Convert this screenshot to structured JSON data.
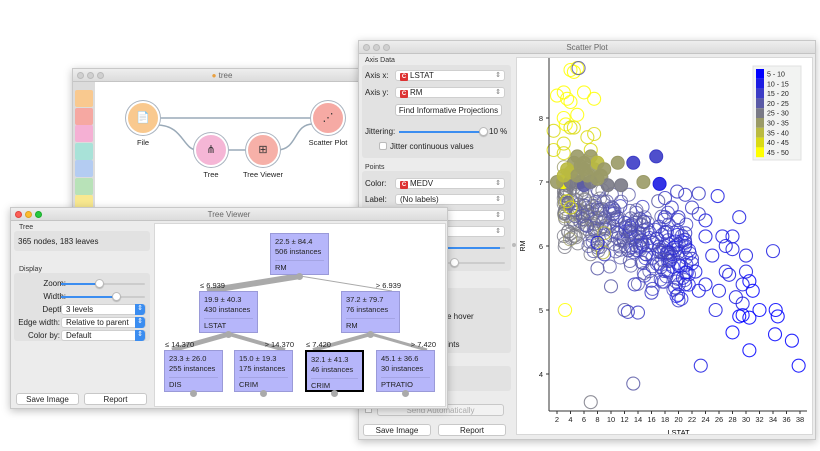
{
  "workflow": {
    "title": "tree",
    "nodes": [
      {
        "label": "File",
        "color": "#f9c98f"
      },
      {
        "label": "Tree",
        "color": "#f5b6d6"
      },
      {
        "label": "Tree Viewer",
        "color": "#f6b0a8"
      },
      {
        "label": "Scatter Plot",
        "color": "#f6aaa4"
      }
    ],
    "toolbar_colors": [
      "#f9c98f",
      "#f6a8a2",
      "#f5b0d4",
      "#a8e2d8",
      "#b4ccf2",
      "#b8e2b8",
      "#f8e890"
    ]
  },
  "scatter": {
    "title": "Scatter Plot",
    "axis_data_label": "Axis Data",
    "axis_x_label": "Axis x:",
    "axis_x_value": "LSTAT",
    "axis_y_label": "Axis y:",
    "axis_y_value": "RM",
    "find_projections": "Find Informative Projections",
    "jittering_label": "Jittering:",
    "jittering_value": "10 %",
    "jittering_fraction": 1.0,
    "jitter_continuous": "Jitter continuous values",
    "points_label": "Points",
    "color_label": "Color:",
    "color_value": "MEDV",
    "label_label": "Label:",
    "label_value": "(No labels)",
    "hover_text": "e hover",
    "ints_text": "ints",
    "send_automatically": "Send Automatically",
    "save_image": "Save Image",
    "report": "Report"
  },
  "tree_viewer": {
    "title": "Tree Viewer",
    "tree_label": "Tree",
    "tree_info": "365 nodes, 183 leaves",
    "display_label": "Display",
    "zoom_label": "Zoom:",
    "zoom_fraction": 0.45,
    "width_label": "Width:",
    "width_fraction": 0.65,
    "depth_label": "Depth:",
    "depth_value": "3 levels",
    "edge_width_label": "Edge width:",
    "edge_width_value": "Relative to parent",
    "color_by_label": "Color by:",
    "color_by_value": "Default",
    "save_image": "Save Image",
    "report": "Report",
    "nodes": [
      {
        "stat": "22.5 ± 84.4",
        "instances": "506 instances",
        "split": "RM",
        "edge": ""
      },
      {
        "stat": "19.9 ± 40.3",
        "instances": "430 instances",
        "split": "LSTAT",
        "edge": "≤ 6.939"
      },
      {
        "stat": "37.2 ± 79.7",
        "instances": "76 instances",
        "split": "RM",
        "edge": "> 6.939"
      },
      {
        "stat": "23.3 ± 26.0",
        "instances": "255 instances",
        "split": "DIS",
        "edge": "≤ 14.370"
      },
      {
        "stat": "15.0 ± 19.3",
        "instances": "175 instances",
        "split": "CRIM",
        "edge": "> 14.370"
      },
      {
        "stat": "32.1 ± 41.3",
        "instances": "46 instances",
        "split": "CRIM",
        "edge": "≤ 7.420"
      },
      {
        "stat": "45.1 ± 36.6",
        "instances": "30 instances",
        "split": "PTRATIO",
        "edge": "> 7.420"
      }
    ]
  },
  "chart_data": {
    "type": "scatter",
    "xlabel": "LSTAT",
    "ylabel": "RM",
    "xlim": [
      0.5,
      39
    ],
    "ylim": [
      3.4,
      9.0
    ],
    "xticks": [
      2,
      4,
      6,
      8,
      10,
      12,
      14,
      16,
      18,
      20,
      22,
      24,
      26,
      28,
      30,
      32,
      34,
      36,
      38
    ],
    "yticks": [
      4,
      5,
      6,
      7,
      8
    ],
    "legend": {
      "placement": "top-right",
      "entries": [
        {
          "label": "5 - 10",
          "color": "#0000ff"
        },
        {
          "label": "10 - 15",
          "color": "#1c1ce2"
        },
        {
          "label": "15 - 20",
          "color": "#3c3cc6"
        },
        {
          "label": "20 - 25",
          "color": "#5a5aa6"
        },
        {
          "label": "25 - 30",
          "color": "#7a7a86"
        },
        {
          "label": "30 - 35",
          "color": "#9a9a66"
        },
        {
          "label": "35 - 40",
          "color": "#baba40"
        },
        {
          "label": "40 - 45",
          "color": "#dada14"
        },
        {
          "label": "45 - 50",
          "color": "#ffff00"
        }
      ]
    },
    "points_filled": [
      [
        2.9,
        7.0,
        50
      ],
      [
        4.5,
        7.3,
        33
      ],
      [
        5,
        7.4,
        32
      ],
      [
        6,
        7.2,
        31
      ],
      [
        7,
        7.4,
        30
      ],
      [
        7.5,
        7.2,
        34
      ],
      [
        8,
        7.3,
        36
      ],
      [
        8.5,
        7.1,
        33
      ],
      [
        9,
        7.2,
        31
      ],
      [
        3.5,
        7.2,
        37
      ],
      [
        4,
        7.0,
        28
      ],
      [
        5.5,
        7.0,
        27
      ],
      [
        6,
        6.95,
        22
      ],
      [
        7,
        7.0,
        28
      ],
      [
        9.5,
        6.95,
        27
      ],
      [
        11.5,
        6.95,
        26
      ],
      [
        11,
        7.3,
        32
      ],
      [
        14.8,
        7.0,
        31
      ],
      [
        13.3,
        7.3,
        17
      ],
      [
        16.7,
        7.4,
        16
      ],
      [
        17.2,
        6.97,
        12
      ],
      [
        6,
        7.3,
        30
      ],
      [
        2,
        7.0,
        33
      ],
      [
        4,
        7.15,
        35
      ],
      [
        5,
        7.1,
        33
      ],
      [
        6.5,
        7.1,
        34
      ],
      [
        8,
        7.05,
        30
      ],
      [
        3,
        7.1,
        36
      ],
      [
        5.5,
        7.25,
        31
      ]
    ],
    "points_hollow": [
      [
        5,
        8.78,
        48
      ],
      [
        4,
        8.75,
        50
      ],
      [
        4.5,
        8.72,
        50
      ],
      [
        6,
        8.4,
        50
      ],
      [
        7.5,
        8.3,
        48
      ],
      [
        2,
        8.35,
        48
      ],
      [
        3,
        8.4,
        50
      ],
      [
        3.5,
        8.3,
        46
      ],
      [
        4,
        8.25,
        48
      ],
      [
        3,
        8.0,
        50
      ],
      [
        3.3,
        7.9,
        45
      ],
      [
        4,
        7.85,
        44
      ],
      [
        4.5,
        7.85,
        42
      ],
      [
        1.5,
        7.8,
        44
      ],
      [
        5,
        8.05,
        46
      ],
      [
        6.5,
        7.7,
        44
      ],
      [
        7.5,
        7.75,
        44
      ],
      [
        3,
        7.6,
        43
      ],
      [
        7,
        7.5,
        42
      ],
      [
        1.5,
        7.5,
        42
      ],
      [
        3,
        7.45,
        44
      ],
      [
        3.2,
        5.0,
        50
      ],
      [
        3.5,
        6.7,
        42
      ],
      [
        4,
        6.6,
        40
      ],
      [
        9,
        6.2,
        37
      ],
      [
        8.8,
        5.9,
        36
      ],
      [
        5.2,
        8.78,
        22
      ],
      [
        29,
        6.45,
        12
      ],
      [
        25.8,
        6.78,
        14
      ],
      [
        23,
        6.82,
        16
      ],
      [
        19.8,
        6.85,
        18
      ],
      [
        21,
        6.8,
        17
      ],
      [
        26.5,
        6.15,
        12
      ],
      [
        28,
        6.15,
        13
      ],
      [
        24,
        6.4,
        14
      ],
      [
        24,
        6.15,
        14
      ],
      [
        30,
        5.85,
        11
      ],
      [
        34,
        5.92,
        10
      ],
      [
        27,
        6.0,
        13
      ],
      [
        28,
        5.95,
        12
      ],
      [
        22,
        5.8,
        15
      ],
      [
        25,
        5.85,
        13
      ],
      [
        27,
        5.6,
        12
      ],
      [
        27.5,
        5.55,
        11
      ],
      [
        30,
        5.6,
        10
      ],
      [
        30.5,
        5.45,
        9
      ],
      [
        31,
        5.3,
        9
      ],
      [
        29.5,
        5.4,
        10
      ],
      [
        28.5,
        5.2,
        11
      ],
      [
        25.5,
        5.0,
        12
      ],
      [
        29.5,
        5.1,
        10
      ],
      [
        29,
        4.9,
        9
      ],
      [
        29.5,
        4.92,
        9
      ],
      [
        30.5,
        4.88,
        8
      ],
      [
        32,
        5.0,
        8
      ],
      [
        34.4,
        5.0,
        7
      ],
      [
        34.7,
        4.9,
        7
      ],
      [
        28,
        4.65,
        9
      ],
      [
        34.3,
        4.62,
        7
      ],
      [
        36.8,
        4.52,
        6
      ],
      [
        30.5,
        4.37,
        8
      ],
      [
        37.8,
        4.13,
        6
      ],
      [
        23.3,
        4.13,
        12
      ],
      [
        13.3,
        3.85,
        22
      ],
      [
        7,
        3.56,
        27
      ],
      [
        12,
        5.0,
        20
      ],
      [
        12.5,
        4.97,
        19
      ],
      [
        14,
        4.96,
        18
      ],
      [
        10,
        5.37,
        20
      ],
      [
        13.5,
        5.4,
        19
      ],
      [
        16,
        5.27,
        17
      ],
      [
        20,
        5.15,
        15
      ],
      [
        23,
        5.3,
        13
      ],
      [
        24,
        5.4,
        13
      ],
      [
        21,
        5.4,
        14
      ],
      [
        8,
        5.65,
        22
      ],
      [
        19.5,
        5.35,
        15
      ],
      [
        22.5,
        5.6,
        14
      ],
      [
        26,
        5.3,
        12
      ],
      [
        20,
        5.9,
        17
      ],
      [
        19,
        6.6,
        19
      ],
      [
        17,
        6.7,
        20
      ],
      [
        18,
        6.75,
        19
      ],
      [
        22,
        6.6,
        16
      ],
      [
        23,
        6.5,
        15
      ],
      [
        21,
        6.2,
        16
      ],
      [
        18,
        6.45,
        18
      ],
      [
        20,
        6.45,
        17
      ],
      [
        8,
        6.05,
        12
      ],
      [
        9,
        5.87,
        15
      ]
    ],
    "dense_cluster": {
      "count": 320,
      "lstat_range": [
        3,
        22
      ],
      "rm_center_at_lstat3": 6.7,
      "rm_slope": -0.055,
      "rm_spread": 0.55,
      "medv_range": [
        14,
        28
      ]
    }
  }
}
